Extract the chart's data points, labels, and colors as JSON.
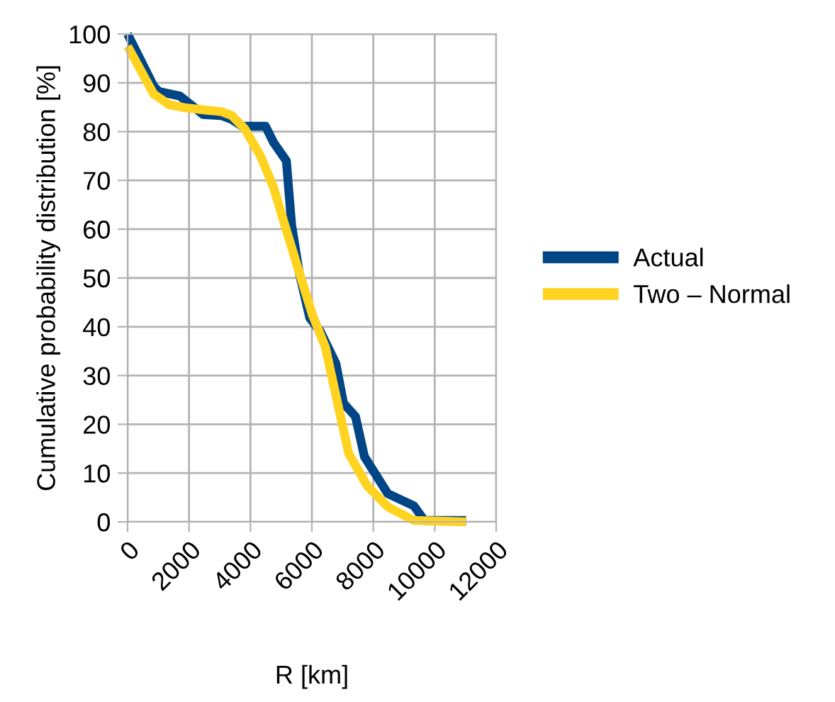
{
  "chart_data": {
    "type": "line",
    "xlabel": "R [km]",
    "ylabel": "Cumulative probability distribution [%]",
    "xlim": [
      0,
      12000
    ],
    "xticks": [
      0,
      2000,
      4000,
      6000,
      8000,
      10000,
      12000
    ],
    "ylim": [
      0,
      100
    ],
    "yticks": [
      0,
      10,
      20,
      30,
      40,
      50,
      60,
      70,
      80,
      90,
      100
    ],
    "grid": true,
    "legend": "right",
    "marker": "none",
    "line_style": "solid",
    "series": [
      {
        "name": "Actual",
        "color": "#004586",
        "x": [
          0,
          850,
          1020,
          1700,
          2460,
          3050,
          3390,
          3730,
          4490,
          4750,
          5170,
          5340,
          5590,
          5930,
          6270,
          6780,
          7030,
          7420,
          7710,
          8470,
          9320,
          9660,
          11020
        ],
        "values": [
          100,
          89.3,
          88.2,
          87.3,
          83.5,
          83.3,
          82.5,
          81.1,
          81.1,
          77.8,
          74,
          60.9,
          51,
          41.8,
          39.1,
          32.5,
          24.3,
          21.6,
          13.4,
          5.8,
          3.3,
          0.3,
          0.3
        ]
      },
      {
        "name": "Two – Normal",
        "color": "#ffd320",
        "x": [
          0,
          850,
          1360,
          1860,
          2540,
          3050,
          3390,
          3810,
          4320,
          4750,
          5170,
          5590,
          6020,
          6440,
          6780,
          7200,
          7800,
          8470,
          9320,
          11020
        ],
        "values": [
          97.5,
          87.7,
          85.5,
          84.9,
          84.4,
          84.1,
          83.3,
          80.6,
          75.1,
          68.6,
          59.8,
          51.1,
          42.4,
          35.8,
          26,
          14,
          7.4,
          3.1,
          0.3,
          0
        ]
      }
    ]
  }
}
